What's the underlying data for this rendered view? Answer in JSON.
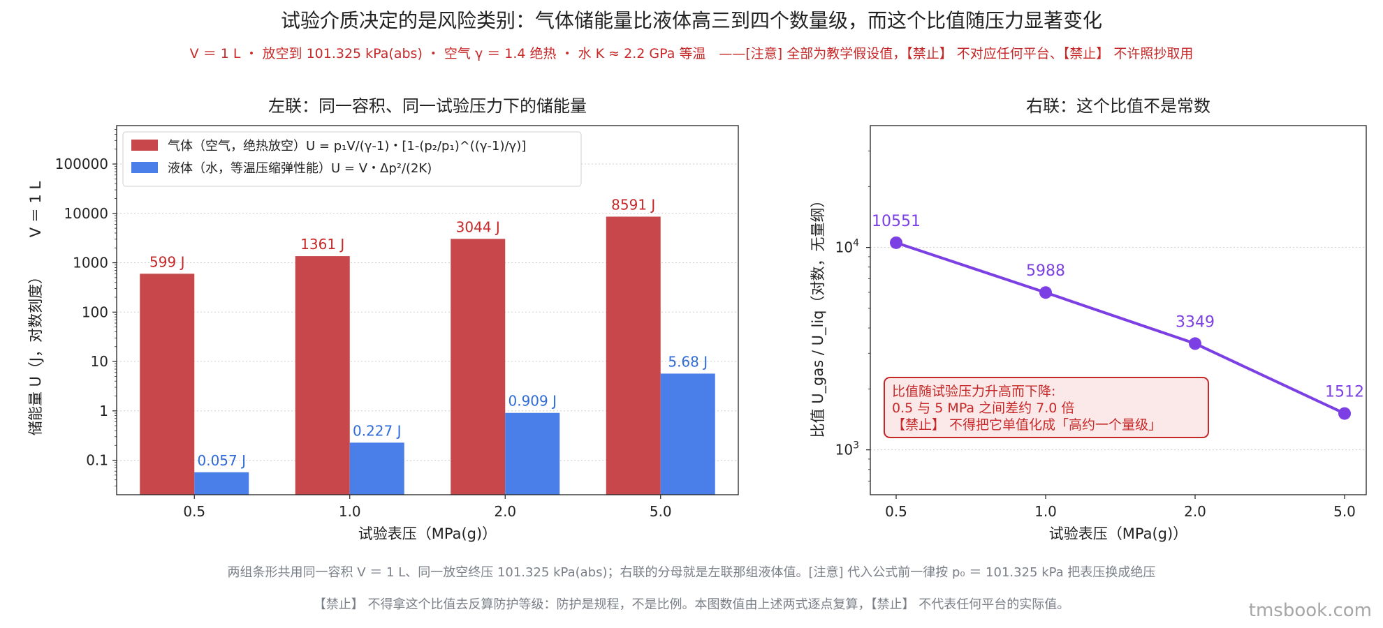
{
  "title": "试验介质决定的是风险类别：气体储能量比液体高三到四个数量级，而这个比值随压力显著变化",
  "subtitle": "V ＝ 1 L ・ 放空到 101.325 kPa(abs) ・ 空气 γ ＝ 1.4 绝热 ・ 水 K ≈ 2.2 GPa 等温　——[注意] 全部为教学假设值，【禁止】 不对应任何平台、【禁止】 不许照抄取用",
  "footnote_1": "两组条形共用同一容积 V ＝ 1 L、同一放空终压 101.325 kPa(abs)；右联的分母就是左联那组液体值。[注意] 代入公式前一律按 p₀ ＝ 101.325 kPa 把表压换成绝压",
  "footnote_2": "【禁止】 不得拿这个比值去反算防护等级：防护是规程，不是比例。本图数值由上述两式逐点复算，【禁止】 不代表任何平台的实际值。",
  "watermark": "tmsbook.com",
  "colors": {
    "gas": "#c8474a",
    "liquid": "#4a7ee8",
    "ratio_line": "#7b3fe4",
    "red_text": "#c62828",
    "annotation_bg": "#fbe9e9",
    "annotation_border": "#c62828"
  },
  "chart_data": [
    {
      "type": "bar",
      "title": "左联：同一容积、同一试验压力下的储能量",
      "xlabel": "试验表压（MPa(g)）",
      "ylabel": "储能量 U（J，对数刻度）",
      "ylabel_right": "V ＝ 1 L",
      "yscale": "log",
      "ylim": [
        0.02,
        600000
      ],
      "yticks": [
        "0.1",
        "1",
        "10",
        "100",
        "1000",
        "10000",
        "100000"
      ],
      "categories": [
        "0.5",
        "1.0",
        "2.0",
        "5.0"
      ],
      "series": [
        {
          "name": "气体（空气，绝热放空）U = p₁V/(γ-1)・[1-(p₂/p₁)^((γ-1)/γ)]",
          "values": [
            599,
            1361,
            3044,
            8591
          ],
          "labels": [
            "599 J",
            "1361 J",
            "3044 J",
            "8591 J"
          ]
        },
        {
          "name": "液体（水，等温压缩弹性能）U = V・Δp²/(2K)",
          "values": [
            0.057,
            0.227,
            0.909,
            5.68
          ],
          "labels": [
            "0.057 J",
            "0.227 J",
            "0.909 J",
            "5.68 J"
          ]
        }
      ],
      "legend": "top-left",
      "grid": "y-dotted"
    },
    {
      "type": "line",
      "title": "右联：这个比值不是常数",
      "xlabel": "试验表压（MPa(g)）",
      "ylabel": "比值 U_gas / U_liq（对数，无量纲）",
      "yscale": "log",
      "ylim": [
        600,
        40000
      ],
      "x": [
        "0.5",
        "1.0",
        "2.0",
        "5.0"
      ],
      "values": [
        10551,
        5988,
        3349,
        1512
      ],
      "labels": [
        "10551",
        "5988",
        "3349",
        "1512"
      ],
      "annotation": "比值随试验压力升高而下降:\n0.5 与 5 MPa 之间差约 7.0 倍\n【禁止】 不得把它单值化成「高约一个量级」",
      "grid": "y-dotted"
    }
  ]
}
